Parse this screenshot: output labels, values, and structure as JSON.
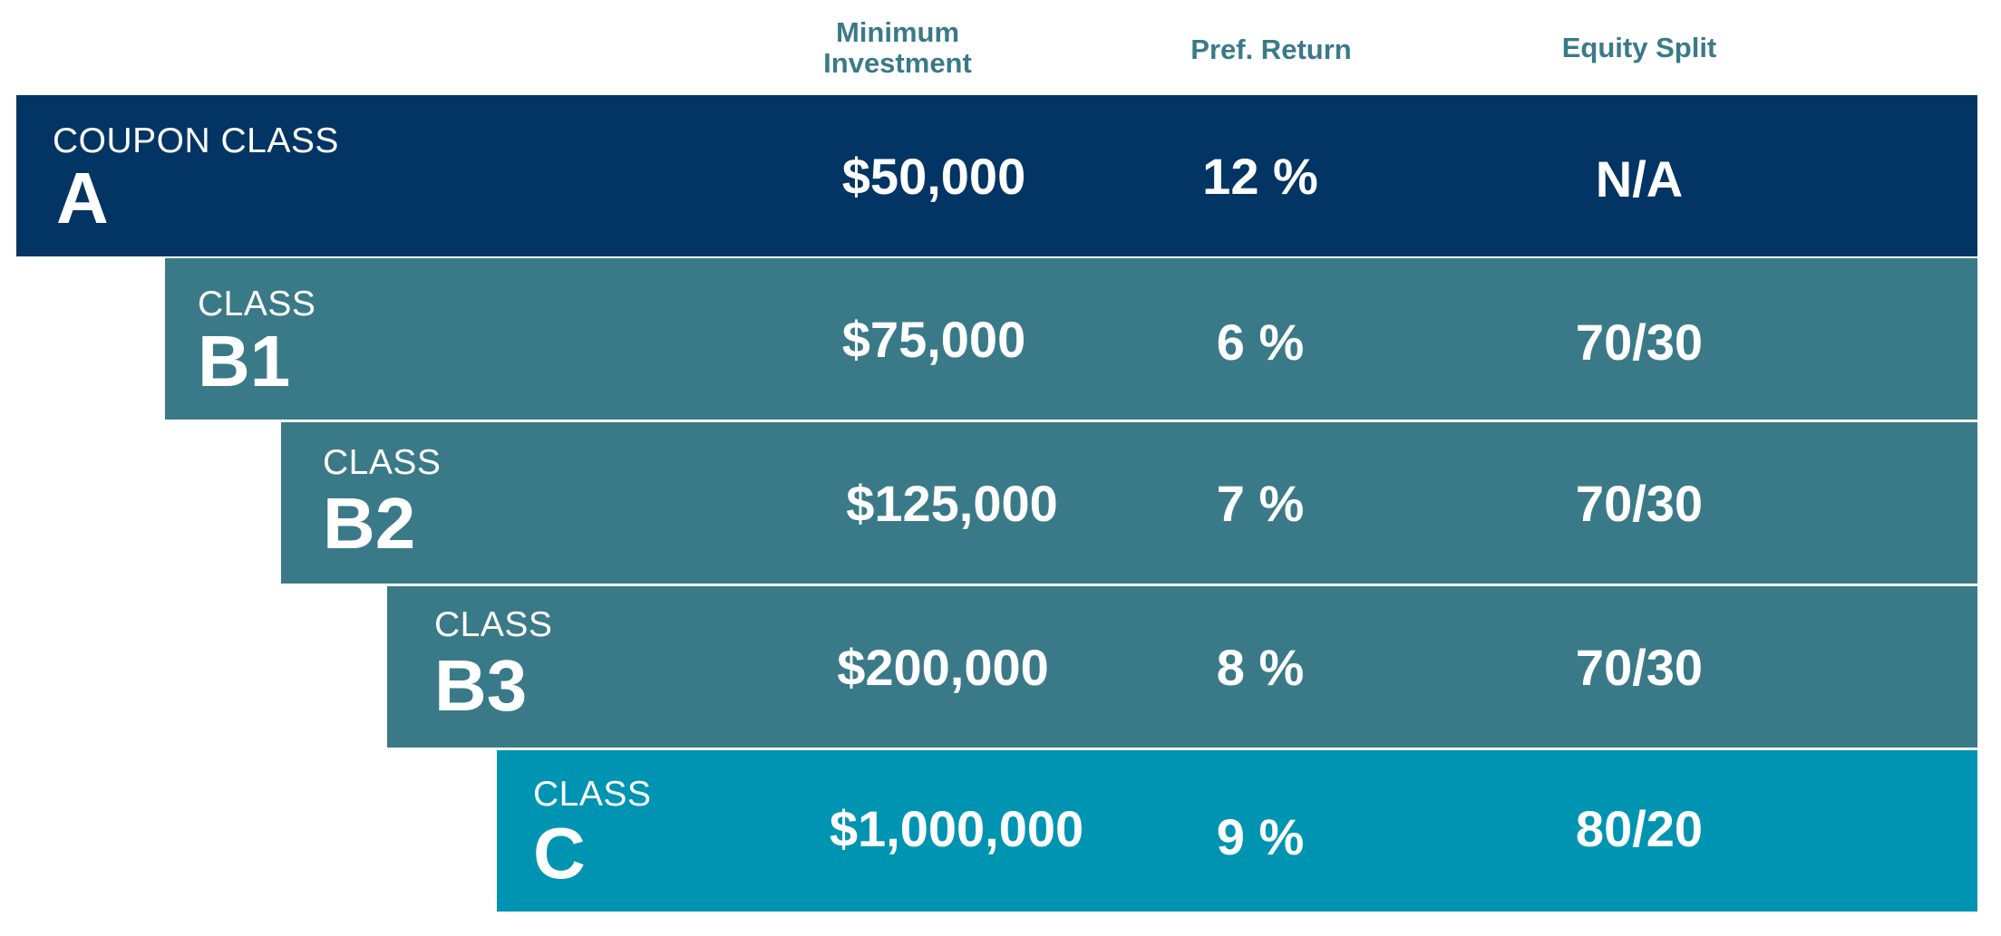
{
  "headers": {
    "minimum_investment": "Minimum\nInvestment",
    "pref_return": "Pref. Return",
    "equity_split": "Equity Split"
  },
  "colors": {
    "class_a": "#023564",
    "class_b": "#3a7a88",
    "class_c": "#0094b3",
    "header_text": "#3a7a88"
  },
  "rows": [
    {
      "small": "COUPON CLASS",
      "big": "A",
      "min": "$50,000",
      "pref": "12 %",
      "equity": "N/A"
    },
    {
      "small": "CLASS",
      "big": "B1",
      "min": "$75,000",
      "pref": "6 %",
      "equity": "70/30"
    },
    {
      "small": "CLASS",
      "big": "B2",
      "min": "$125,000",
      "pref": "7 %",
      "equity": "70/30"
    },
    {
      "small": "CLASS",
      "big": "B3",
      "min": "$200,000",
      "pref": "8 %",
      "equity": "70/30"
    },
    {
      "small": "CLASS",
      "big": "C",
      "min": "$1,000,000",
      "pref": "9 %",
      "equity": "80/20"
    }
  ]
}
